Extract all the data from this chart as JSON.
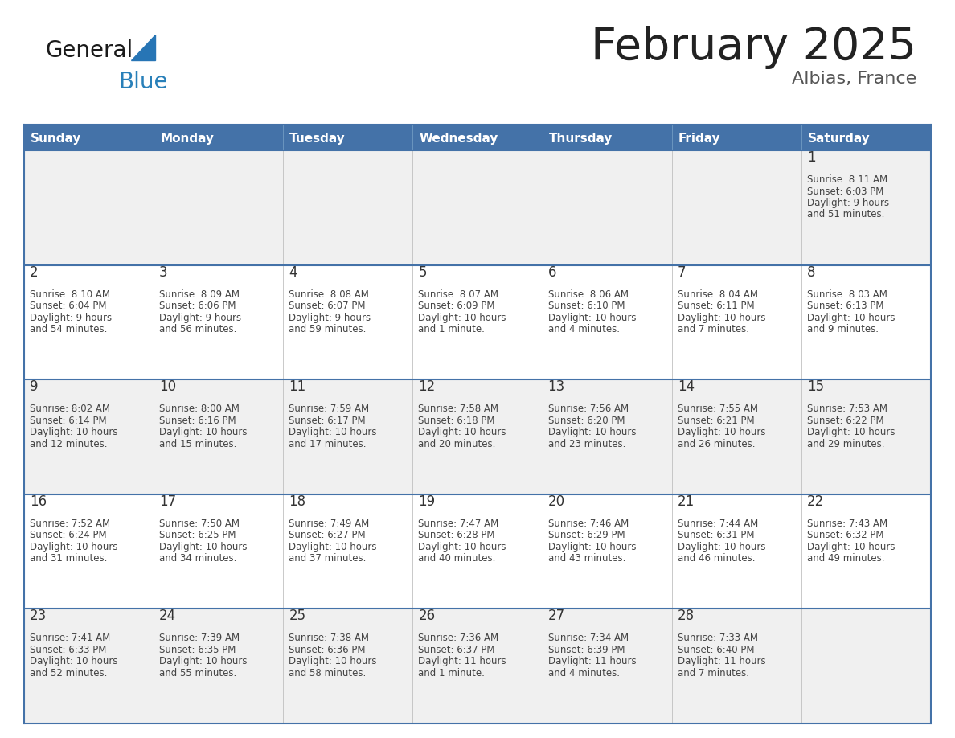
{
  "title": "February 2025",
  "subtitle": "Albias, France",
  "days_of_week": [
    "Sunday",
    "Monday",
    "Tuesday",
    "Wednesday",
    "Thursday",
    "Friday",
    "Saturday"
  ],
  "header_bg": "#4472a8",
  "header_text_color": "#ffffff",
  "cell_bg_odd": "#f0f0f0",
  "cell_bg_even": "#ffffff",
  "border_color": "#4472a8",
  "sep_color": "#c0c0c0",
  "day_number_color": "#333333",
  "info_text_color": "#444444",
  "title_color": "#222222",
  "subtitle_color": "#555555",
  "general_color": "#1a1a1a",
  "blue_text_color": "#2980b9",
  "triangle_color": "#2775b5",
  "calendar_data": [
    [
      null,
      null,
      null,
      null,
      null,
      null,
      {
        "day": "1",
        "sunrise": "8:11 AM",
        "sunset": "6:03 PM",
        "daylight": "9 hours and 51 minutes"
      }
    ],
    [
      {
        "day": "2",
        "sunrise": "8:10 AM",
        "sunset": "6:04 PM",
        "daylight": "9 hours and 54 minutes"
      },
      {
        "day": "3",
        "sunrise": "8:09 AM",
        "sunset": "6:06 PM",
        "daylight": "9 hours and 56 minutes"
      },
      {
        "day": "4",
        "sunrise": "8:08 AM",
        "sunset": "6:07 PM",
        "daylight": "9 hours and 59 minutes"
      },
      {
        "day": "5",
        "sunrise": "8:07 AM",
        "sunset": "6:09 PM",
        "daylight": "10 hours and 1 minute"
      },
      {
        "day": "6",
        "sunrise": "8:06 AM",
        "sunset": "6:10 PM",
        "daylight": "10 hours and 4 minutes"
      },
      {
        "day": "7",
        "sunrise": "8:04 AM",
        "sunset": "6:11 PM",
        "daylight": "10 hours and 7 minutes"
      },
      {
        "day": "8",
        "sunrise": "8:03 AM",
        "sunset": "6:13 PM",
        "daylight": "10 hours and 9 minutes"
      }
    ],
    [
      {
        "day": "9",
        "sunrise": "8:02 AM",
        "sunset": "6:14 PM",
        "daylight": "10 hours and 12 minutes"
      },
      {
        "day": "10",
        "sunrise": "8:00 AM",
        "sunset": "6:16 PM",
        "daylight": "10 hours and 15 minutes"
      },
      {
        "day": "11",
        "sunrise": "7:59 AM",
        "sunset": "6:17 PM",
        "daylight": "10 hours and 17 minutes"
      },
      {
        "day": "12",
        "sunrise": "7:58 AM",
        "sunset": "6:18 PM",
        "daylight": "10 hours and 20 minutes"
      },
      {
        "day": "13",
        "sunrise": "7:56 AM",
        "sunset": "6:20 PM",
        "daylight": "10 hours and 23 minutes"
      },
      {
        "day": "14",
        "sunrise": "7:55 AM",
        "sunset": "6:21 PM",
        "daylight": "10 hours and 26 minutes"
      },
      {
        "day": "15",
        "sunrise": "7:53 AM",
        "sunset": "6:22 PM",
        "daylight": "10 hours and 29 minutes"
      }
    ],
    [
      {
        "day": "16",
        "sunrise": "7:52 AM",
        "sunset": "6:24 PM",
        "daylight": "10 hours and 31 minutes"
      },
      {
        "day": "17",
        "sunrise": "7:50 AM",
        "sunset": "6:25 PM",
        "daylight": "10 hours and 34 minutes"
      },
      {
        "day": "18",
        "sunrise": "7:49 AM",
        "sunset": "6:27 PM",
        "daylight": "10 hours and 37 minutes"
      },
      {
        "day": "19",
        "sunrise": "7:47 AM",
        "sunset": "6:28 PM",
        "daylight": "10 hours and 40 minutes"
      },
      {
        "day": "20",
        "sunrise": "7:46 AM",
        "sunset": "6:29 PM",
        "daylight": "10 hours and 43 minutes"
      },
      {
        "day": "21",
        "sunrise": "7:44 AM",
        "sunset": "6:31 PM",
        "daylight": "10 hours and 46 minutes"
      },
      {
        "day": "22",
        "sunrise": "7:43 AM",
        "sunset": "6:32 PM",
        "daylight": "10 hours and 49 minutes"
      }
    ],
    [
      {
        "day": "23",
        "sunrise": "7:41 AM",
        "sunset": "6:33 PM",
        "daylight": "10 hours and 52 minutes"
      },
      {
        "day": "24",
        "sunrise": "7:39 AM",
        "sunset": "6:35 PM",
        "daylight": "10 hours and 55 minutes"
      },
      {
        "day": "25",
        "sunrise": "7:38 AM",
        "sunset": "6:36 PM",
        "daylight": "10 hours and 58 minutes"
      },
      {
        "day": "26",
        "sunrise": "7:36 AM",
        "sunset": "6:37 PM",
        "daylight": "11 hours and 1 minute"
      },
      {
        "day": "27",
        "sunrise": "7:34 AM",
        "sunset": "6:39 PM",
        "daylight": "11 hours and 4 minutes"
      },
      {
        "day": "28",
        "sunrise": "7:33 AM",
        "sunset": "6:40 PM",
        "daylight": "11 hours and 7 minutes"
      },
      null
    ]
  ]
}
